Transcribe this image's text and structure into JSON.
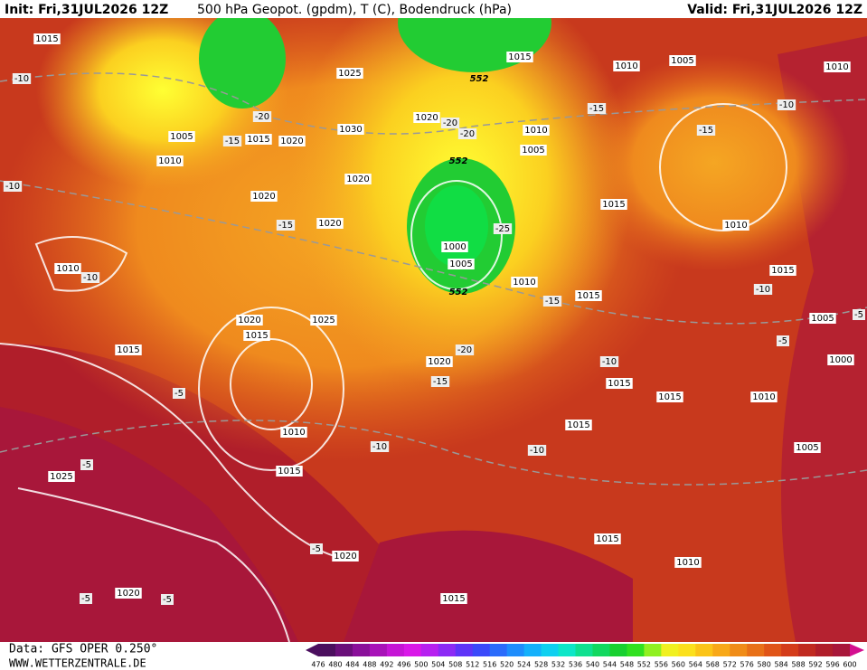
{
  "header": {
    "init": "Init: Fri,31JUL2026 12Z",
    "title": "500 hPa Geopot. (gpdm), T (C), Bodendruck (hPa)",
    "valid": "Valid: Fri,31JUL2026 12Z"
  },
  "isobar_labels": [
    "1015",
    "1015",
    "1010",
    "1005",
    "1010",
    "1025",
    "1020",
    "1005",
    "1015",
    "1020",
    "1030",
    "1010",
    "1005",
    "1010",
    "1020",
    "1020",
    "1015",
    "1020",
    "1010",
    "1000",
    "1005",
    "1010",
    "1015",
    "1010",
    "1015",
    "1005",
    "1020",
    "1025",
    "1015",
    "1015",
    "1000",
    "1020",
    "1015",
    "1015",
    "1010",
    "1015",
    "1010",
    "1005",
    "1015",
    "1025",
    "1020",
    "1015",
    "1010",
    "1020",
    "1015"
  ],
  "temperature_labels": [
    "-10",
    "-20",
    "-15",
    "-20",
    "-20",
    "-15",
    "-15",
    "-10",
    "-10",
    "-15",
    "-25",
    "-10",
    "-15",
    "-10",
    "-5",
    "-5",
    "-20",
    "-10",
    "-15",
    "-5",
    "-10",
    "-10",
    "-5",
    "-5",
    "-5",
    "-5"
  ],
  "geopotential_labels": [
    "552",
    "552",
    "552"
  ],
  "colorbar": {
    "labels": [
      476,
      480,
      484,
      488,
      492,
      496,
      500,
      504,
      508,
      512,
      516,
      520,
      524,
      528,
      532,
      536,
      540,
      544,
      548,
      552,
      556,
      560,
      564,
      568,
      572,
      576,
      580,
      584,
      588,
      592,
      596,
      600
    ]
  },
  "footer": {
    "data": "Data: GFS OPER 0.250°",
    "site": "WWW.WETTERZENTRALE.DE"
  }
}
